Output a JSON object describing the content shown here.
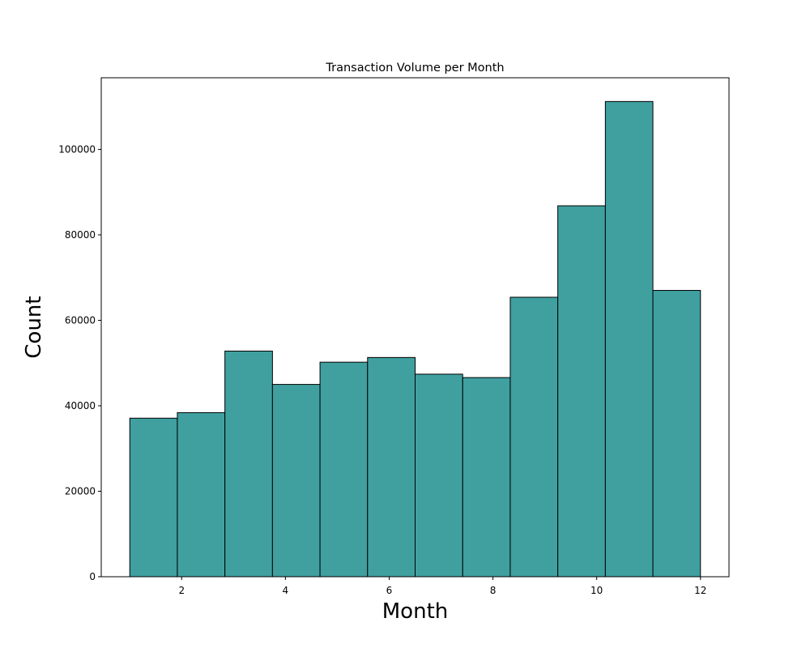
{
  "chart_data": {
    "type": "bar",
    "title": "Transaction Volume per Month",
    "xlabel": "Month",
    "ylabel": "Count",
    "bin_edges": [
      1.0,
      1.9167,
      2.8333,
      3.75,
      4.6667,
      5.5833,
      6.5,
      7.4167,
      8.3333,
      9.25,
      10.1667,
      11.0833,
      12.0
    ],
    "values": [
      37100,
      38400,
      52800,
      45000,
      50200,
      51300,
      47400,
      46600,
      65400,
      86800,
      111200,
      67000
    ],
    "xlim": [
      0.45,
      12.55
    ],
    "ylim": [
      0,
      116760
    ],
    "xticks": [
      2,
      4,
      6,
      8,
      10,
      12
    ],
    "yticks": [
      0,
      20000,
      40000,
      60000,
      80000,
      100000
    ],
    "grid": false,
    "legend": "none",
    "bar_color": "#40a0a0",
    "edge_color": "#000000"
  }
}
